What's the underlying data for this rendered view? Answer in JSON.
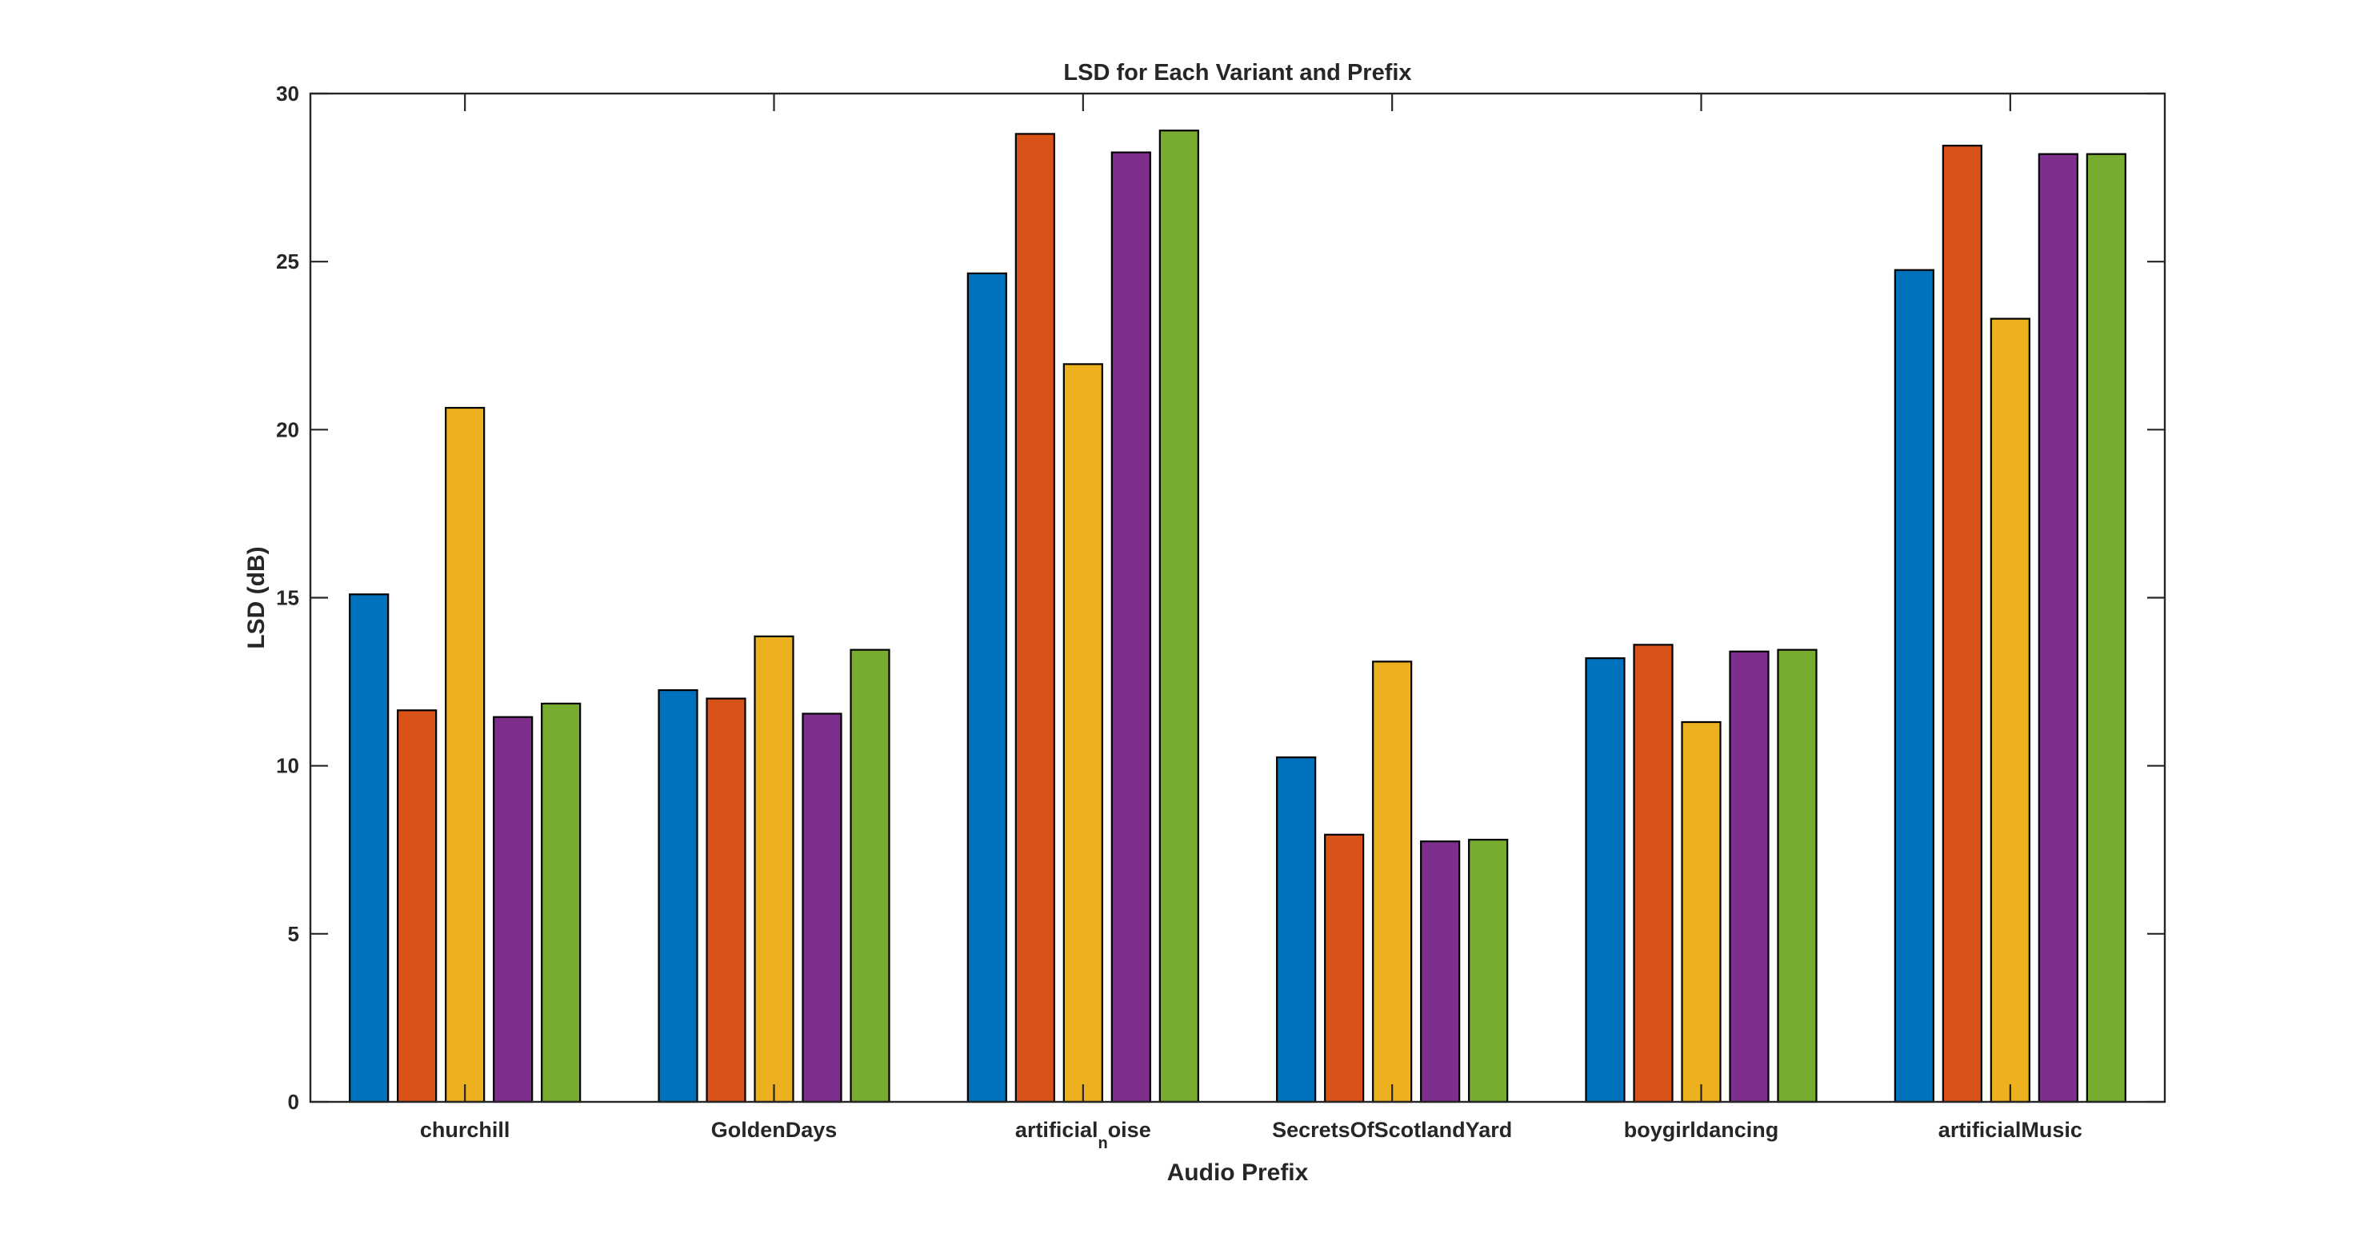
{
  "chart_data": {
    "type": "bar",
    "title": "LSD for Each Variant and Prefix",
    "xlabel": "Audio Prefix",
    "ylabel": "LSD (dB)",
    "ylim": [
      0,
      30
    ],
    "yticks": [
      0,
      5,
      10,
      15,
      20,
      25,
      30
    ],
    "grid": false,
    "legend": "none",
    "categories": [
      {
        "base": "churchill",
        "sub": ""
      },
      {
        "base": "GoldenDays",
        "sub": ""
      },
      {
        "base": "artificial",
        "sub": "n",
        "tail": "oise"
      },
      {
        "base": "SecretsOfScotlandYard",
        "sub": ""
      },
      {
        "base": "boygirldancing",
        "sub": ""
      },
      {
        "base": "artificialMusic",
        "sub": ""
      }
    ],
    "series": [
      {
        "color": "#0072BD",
        "values": [
          15.1,
          12.25,
          24.65,
          10.25,
          13.2,
          24.75
        ]
      },
      {
        "color": "#D95319",
        "values": [
          11.65,
          12.0,
          28.8,
          7.95,
          13.6,
          28.45
        ]
      },
      {
        "color": "#EDB120",
        "values": [
          20.65,
          13.85,
          21.95,
          13.1,
          11.3,
          23.3
        ]
      },
      {
        "color": "#7E2F8E",
        "values": [
          11.45,
          11.55,
          28.25,
          7.75,
          13.4,
          28.2
        ]
      },
      {
        "color": "#77AC30",
        "values": [
          11.85,
          13.45,
          28.9,
          7.8,
          13.45,
          28.2
        ]
      }
    ]
  }
}
